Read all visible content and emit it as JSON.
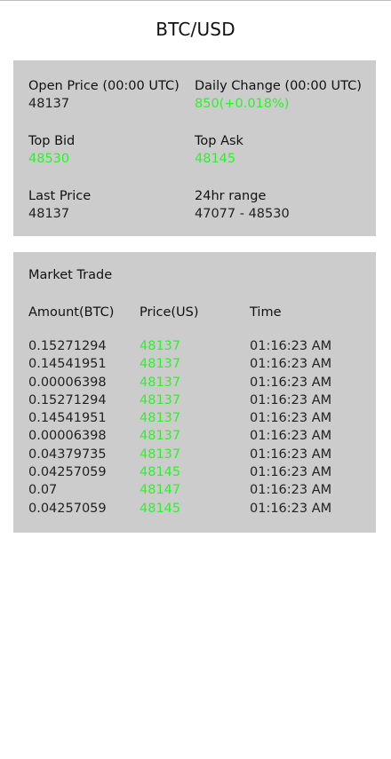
{
  "header": {
    "title": "BTC/USD"
  },
  "summary": {
    "open_label": "Open Price (00:00 UTC)",
    "open_value": "48137",
    "change_label": "Daily Change (00:00 UTC)",
    "change_value": "850(+0.018%)",
    "bid_label": "Top Bid",
    "bid_value": "48530",
    "ask_label": "Top Ask",
    "ask_value": "48145",
    "last_label": "Last Price",
    "last_value": "48137",
    "range_label": "24hr range",
    "range_value": "47077 - 48530"
  },
  "colors": {
    "positive": "#2ef02e",
    "card_bg": "#cccccc"
  },
  "market_trade": {
    "title": "Market Trade",
    "columns": [
      "Amount(BTC)",
      "Price(US)",
      "Time"
    ],
    "rows": [
      {
        "amount": "0.15271294",
        "price": "48137",
        "time": "01:16:23 AM"
      },
      {
        "amount": "0.14541951",
        "price": "48137",
        "time": "01:16:23 AM"
      },
      {
        "amount": "0.00006398",
        "price": "48137",
        "time": "01:16:23 AM"
      },
      {
        "amount": "0.15271294",
        "price": "48137",
        "time": "01:16:23 AM"
      },
      {
        "amount": "0.14541951",
        "price": "48137",
        "time": "01:16:23 AM"
      },
      {
        "amount": "0.00006398",
        "price": "48137",
        "time": "01:16:23 AM"
      },
      {
        "amount": "0.04379735",
        "price": "48137",
        "time": "01:16:23 AM"
      },
      {
        "amount": "0.04257059",
        "price": "48145",
        "time": "01:16:23 AM"
      },
      {
        "amount": "0.07",
        "price": "48147",
        "time": "01:16:23 AM"
      },
      {
        "amount": "0.04257059",
        "price": "48145",
        "time": "01:16:23 AM"
      }
    ]
  }
}
